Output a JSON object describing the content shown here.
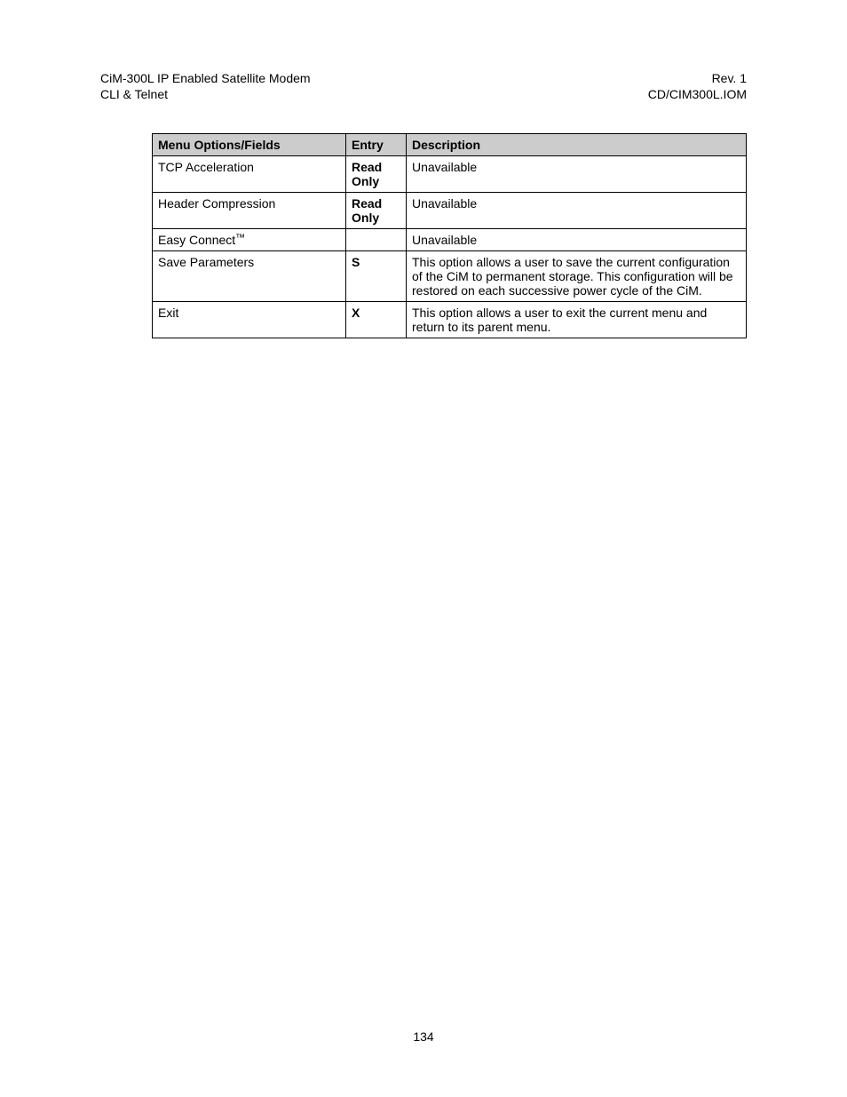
{
  "header": {
    "left_line1": "CiM-300L IP Enabled Satellite Modem",
    "left_line2": "CLI & Telnet",
    "right_line1": "Rev. 1",
    "right_line2": "CD/CIM300L.IOM"
  },
  "table": {
    "columns": {
      "menu": "Menu Options/Fields",
      "entry": "Entry",
      "description": "Description"
    },
    "rows": [
      {
        "menu": "TCP Acceleration",
        "entry": "Read Only",
        "entry_bold": true,
        "description": "Unavailable"
      },
      {
        "menu": "Header Compression",
        "entry": "Read Only",
        "entry_bold": true,
        "description": "Unavailable"
      },
      {
        "menu": "Easy Connect",
        "menu_tm": true,
        "entry": "",
        "entry_bold": false,
        "description": "Unavailable"
      },
      {
        "menu": "Save Parameters",
        "entry": "S",
        "entry_bold": true,
        "description": "This option allows a user to save the current configuration of the CiM to permanent storage. This configuration will be restored on each successive power cycle of the CiM."
      },
      {
        "menu": "Exit",
        "entry": "X",
        "entry_bold": true,
        "description": "This option allows a user to exit the current menu and return to its parent menu."
      }
    ]
  },
  "footer": {
    "page_number": "134"
  },
  "tm_symbol": "™"
}
